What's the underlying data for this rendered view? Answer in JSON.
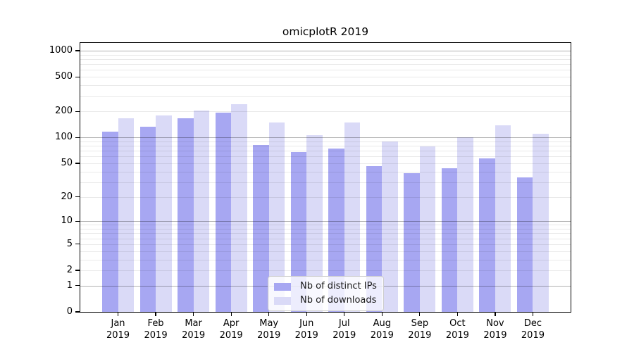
{
  "chart_data": {
    "type": "bar",
    "title": "omicplotR 2019",
    "categories": [
      "Jan",
      "Feb",
      "Mar",
      "Apr",
      "May",
      "Jun",
      "Jul",
      "Aug",
      "Sep",
      "Oct",
      "Nov",
      "Dec"
    ],
    "year_label": "2019",
    "series": [
      {
        "name": "Nb of distinct IPs",
        "color": "#a7a7f2",
        "values": [
          117,
          133,
          167,
          192,
          82,
          68,
          74,
          46,
          38,
          44,
          57,
          34
        ]
      },
      {
        "name": "Nb of downloads",
        "color": "#dadaf7",
        "values": [
          168,
          180,
          205,
          240,
          148,
          106,
          148,
          90,
          79,
          100,
          137,
          111
        ]
      }
    ],
    "yscale": "log1p",
    "yticks": [
      0,
      1,
      2,
      5,
      10,
      20,
      50,
      100,
      200,
      500,
      1000
    ],
    "ylim": [
      0,
      1230
    ],
    "grid": "horizontal",
    "legend_position": "lower-center-inside"
  }
}
